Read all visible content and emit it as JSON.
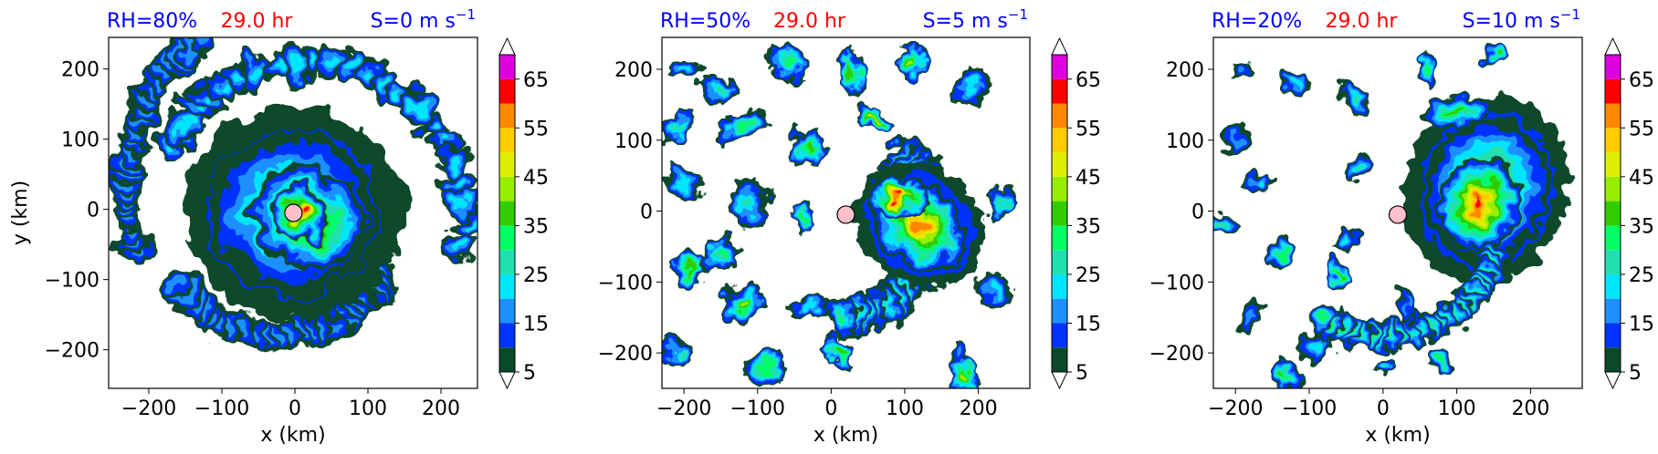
{
  "figure": {
    "colorbar": {
      "levels": [
        5,
        10,
        15,
        20,
        25,
        30,
        35,
        40,
        45,
        50,
        55,
        60,
        65,
        70
      ],
      "tick_labels": [
        "5",
        "15",
        "25",
        "35",
        "45",
        "55",
        "65"
      ],
      "colors": [
        "#0a4a2a",
        "#0033ff",
        "#1e90ff",
        "#00e5ff",
        "#20e0b0",
        "#00ff66",
        "#33cc00",
        "#99ee00",
        "#ddee00",
        "#ffcc00",
        "#ff8800",
        "#ff0000",
        "#dd00dd",
        "#cc77ee",
        "#f8c8f4"
      ],
      "extend": "both"
    }
  },
  "chart_data": [
    {
      "type": "heatmap",
      "title_left": "RH=80%",
      "title_center": "29.0 hr",
      "title_right": "S=0 m s",
      "title_right_sup": "−1",
      "xlabel": "x (km)",
      "ylabel": "y (km)",
      "xlim": [
        -255,
        250
      ],
      "ylim": [
        -255,
        245
      ],
      "xticks": [
        -200,
        -100,
        0,
        100,
        200
      ],
      "yticks": [
        200,
        100,
        0,
        -100,
        -200
      ],
      "xtick_labels": [
        "−200",
        "−100",
        "0",
        "100",
        "200"
      ],
      "ytick_labels": [
        "200",
        "100",
        "0",
        "−100",
        "−200"
      ],
      "center_marker": {
        "x": -2,
        "y": -5,
        "color": "#ffc0cb"
      },
      "field": "reflectivity-like contours, symmetric spiral with peak near center"
    },
    {
      "type": "heatmap",
      "title_left": "RH=50%",
      "title_center": "29.0 hr",
      "title_right": "S=5 m s",
      "title_right_sup": "−1",
      "xlabel": "x (km)",
      "ylabel": "",
      "xlim": [
        -230,
        270
      ],
      "ylim": [
        -250,
        245
      ],
      "xticks": [
        -200,
        -100,
        0,
        100,
        200
      ],
      "yticks": [
        200,
        100,
        0,
        -100,
        -200
      ],
      "xtick_labels": [
        "−200",
        "−100",
        "0",
        "100",
        "200"
      ],
      "ytick_labels": [
        "200",
        "100",
        "0",
        "−100",
        "−200"
      ],
      "center_marker": {
        "x": 20,
        "y": -5,
        "color": "#ffc0cb"
      },
      "field": "asymmetric, peak located south-east of center"
    },
    {
      "type": "heatmap",
      "title_left": "RH=20%",
      "title_center": "29.0 hr",
      "title_right": "S=10 m s",
      "title_right_sup": "−1",
      "xlabel": "x (km)",
      "ylabel": "",
      "xlim": [
        -230,
        270
      ],
      "ylim": [
        -250,
        245
      ],
      "xticks": [
        -200,
        -100,
        0,
        100,
        200
      ],
      "yticks": [
        200,
        100,
        0,
        -100,
        -200
      ],
      "xtick_labels": [
        "−200",
        "−100",
        "0",
        "100",
        "200"
      ],
      "ytick_labels": [
        "200",
        "100",
        "0",
        "−100",
        "−200"
      ],
      "center_marker": {
        "x": 20,
        "y": -5,
        "color": "#ffc0cb"
      },
      "field": "strongly asymmetric, convection east of center"
    }
  ]
}
